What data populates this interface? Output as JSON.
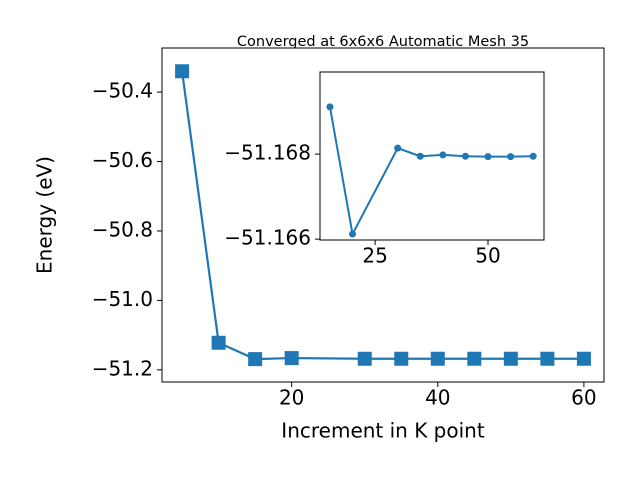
{
  "chart_data": [
    {
      "type": "line",
      "title": "Converged at 6x6x6 Automatic Mesh 35",
      "x_label": "Increment in K point",
      "y_label": "Energy (eV)",
      "x": [
        5,
        10,
        15,
        20,
        30,
        35,
        40,
        45,
        50,
        55,
        60
      ],
      "series": [
        {
          "color": "#1f77b4",
          "marker": "square",
          "values": [
            -50.34,
            -51.122,
            -51.1691,
            -51.1661,
            -51.1681,
            -51.168,
            -51.168,
            -51.168,
            -51.168,
            -51.168,
            -51.168
          ]
        }
      ],
      "xlim": [
        2.25,
        62.75
      ],
      "ylim": [
        -51.235,
        -50.273
      ],
      "xticks": [
        20,
        40,
        60
      ],
      "yticks": [
        {
          "value": -50.4,
          "label": "−50.4"
        },
        {
          "value": -50.6,
          "label": "−50.6"
        },
        {
          "value": -50.8,
          "label": "−50.8"
        },
        {
          "value": -51.0,
          "label": "−51.0"
        },
        {
          "value": -51.2,
          "label": "−51.2"
        }
      ]
    },
    {
      "type": "line",
      "x": [
        15,
        20,
        30,
        35,
        40,
        45,
        50,
        55,
        60
      ],
      "series": [
        {
          "color": "#1f77b4",
          "marker": "circle",
          "values": [
            -51.16911,
            -51.16612,
            -51.16814,
            -51.16795,
            -51.16798,
            -51.16795,
            -51.16794,
            -51.16794,
            -51.16795
          ]
        }
      ],
      "xlim": [
        12.8,
        62.4
      ],
      "ylim": [
        -51.16598,
        -51.16993
      ],
      "xticks": [
        25,
        50
      ],
      "yticks": [
        {
          "value": -51.168,
          "label": "−51.168"
        },
        {
          "value": -51.166,
          "label": "−51.166"
        }
      ]
    }
  ]
}
